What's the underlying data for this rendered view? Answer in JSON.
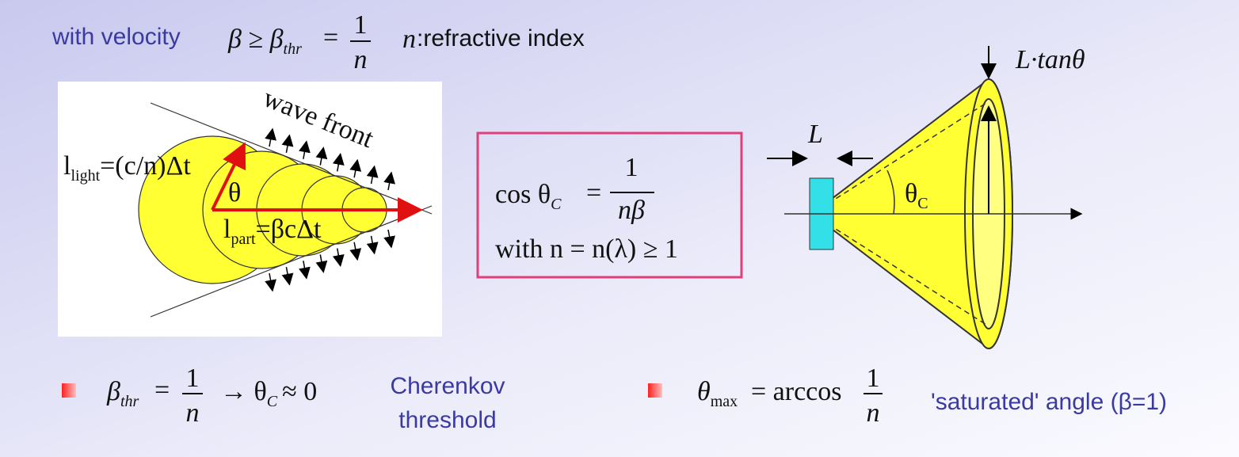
{
  "header": {
    "lead": "with velocity",
    "formula": {
      "lhs": "β ≥ β",
      "sub": "thr",
      "eq": "=",
      "num": "1",
      "den": "n"
    },
    "n": "n",
    "note": ":refractive  index"
  },
  "left_diagram": {
    "light": {
      "base": "l",
      "sub": "light",
      "rest": "=(c/n)Δt"
    },
    "angle": "θ",
    "part": {
      "base": "l",
      "sub": "part",
      "rest": "=βcΔt"
    },
    "wave": "wave front"
  },
  "formula_box": {
    "lhs": "cos θ",
    "sub": "C",
    "eq": "=",
    "num": "1",
    "den": "nβ",
    "line2": "with  n = n(λ) ≥ 1"
  },
  "right_diagram": {
    "top": "L·tanθ",
    "length": "L",
    "angle": "θ",
    "angle_sub": "C"
  },
  "bullets": [
    {
      "lhs": "β",
      "sub": "thr",
      "eq": "=",
      "num": "1",
      "den": "n",
      "rest": "→ θ",
      "rest_sub": "C",
      "rest2": "≈ 0",
      "caption": [
        "Cherenkov",
        "threshold"
      ]
    },
    {
      "lhs": "θ",
      "sub": "max",
      "eq": "= arccos",
      "num": "1",
      "den": "n",
      "caption": [
        "'saturated' angle (β=1)"
      ]
    }
  ]
}
